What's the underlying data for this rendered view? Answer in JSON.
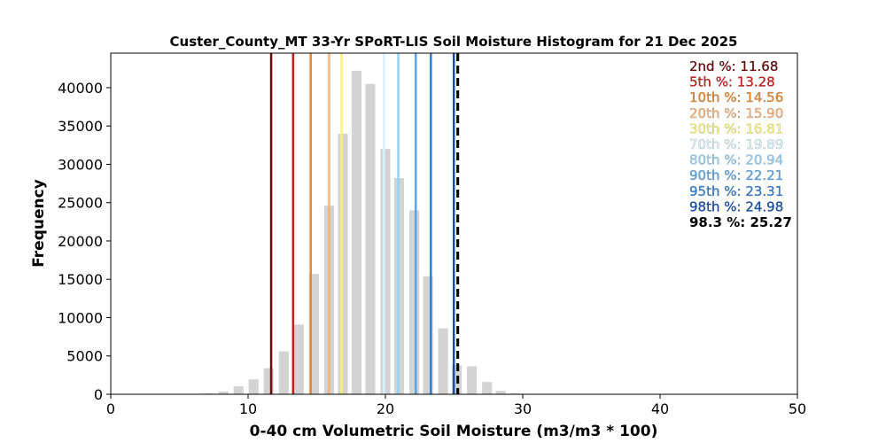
{
  "chart_data": {
    "type": "bar",
    "title": "Custer_County_MT 33-Yr SPoRT-LIS Soil Moisture Histogram for 21 Dec 2025",
    "xlabel": "0-40 cm Volumetric Soil Moisture (m3/m3 * 100)",
    "ylabel": "Frequency",
    "xlim": [
      0,
      50
    ],
    "ylim": [
      0,
      44500
    ],
    "x_ticks": [
      0,
      10,
      20,
      30,
      40,
      50
    ],
    "y_ticks": [
      0,
      5000,
      10000,
      15000,
      20000,
      25000,
      30000,
      35000,
      40000
    ],
    "grid": false,
    "bar_color": "#d3d3d3",
    "bins": [
      {
        "x": 7.1,
        "value": 100
      },
      {
        "x": 8.2,
        "value": 350
      },
      {
        "x": 9.3,
        "value": 1050
      },
      {
        "x": 10.4,
        "value": 1950
      },
      {
        "x": 11.5,
        "value": 3400
      },
      {
        "x": 12.6,
        "value": 5600
      },
      {
        "x": 13.7,
        "value": 9100
      },
      {
        "x": 14.8,
        "value": 15700
      },
      {
        "x": 15.9,
        "value": 24600
      },
      {
        "x": 16.9,
        "value": 34000
      },
      {
        "x": 17.9,
        "value": 42200
      },
      {
        "x": 18.9,
        "value": 40500
      },
      {
        "x": 20.0,
        "value": 32000
      },
      {
        "x": 21.0,
        "value": 28200
      },
      {
        "x": 22.1,
        "value": 24000
      },
      {
        "x": 23.1,
        "value": 15400
      },
      {
        "x": 24.2,
        "value": 8600
      },
      {
        "x": 25.2,
        "value": 3800
      },
      {
        "x": 26.3,
        "value": 3650
      },
      {
        "x": 27.4,
        "value": 1600
      },
      {
        "x": 28.4,
        "value": 450
      },
      {
        "x": 29.4,
        "value": 100
      }
    ],
    "percentiles": [
      {
        "label": "2nd %: 11.68",
        "value": 11.68,
        "color": "#6b0a0a"
      },
      {
        "label": "5th %: 13.28",
        "value": 13.28,
        "color": "#cc1a1a"
      },
      {
        "label": "10th %: 14.56",
        "value": 14.56,
        "color": "#e8862b"
      },
      {
        "label": "20th %: 15.90",
        "value": 15.9,
        "color": "#f6b37a"
      },
      {
        "label": "30th %: 16.81",
        "value": 16.81,
        "color": "#f8f27a"
      },
      {
        "label": "70th %: 19.89",
        "value": 19.89,
        "color": "#d7f1fb"
      },
      {
        "label": "80th %: 20.94",
        "value": 20.94,
        "color": "#95d2f2"
      },
      {
        "label": "90th %: 22.21",
        "value": 22.21,
        "color": "#5ca4e6"
      },
      {
        "label": "95th %: 23.31",
        "value": 23.31,
        "color": "#2f7fd2"
      },
      {
        "label": "98th %: 24.98",
        "value": 24.98,
        "color": "#134fa8"
      }
    ],
    "current": {
      "label": "98.3 %: 25.27",
      "value": 25.27,
      "color": "#000000"
    }
  }
}
